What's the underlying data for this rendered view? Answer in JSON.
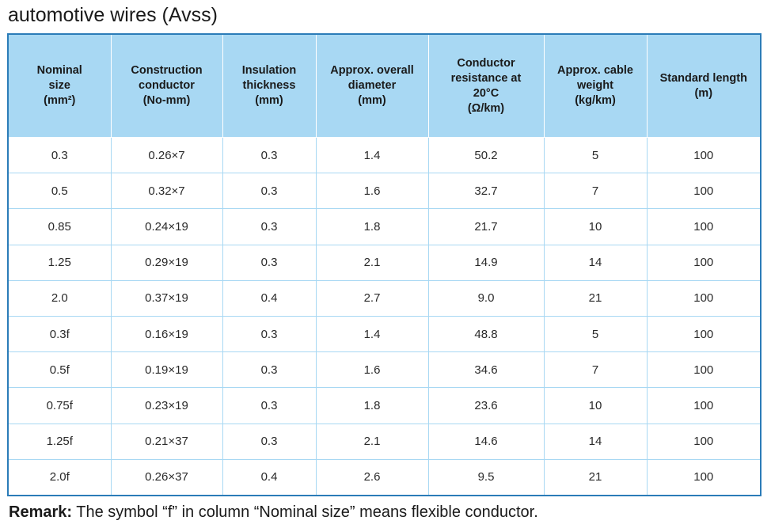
{
  "title": "automotive wires (Avss)",
  "table": {
    "headers": [
      {
        "lines": [
          "Nominal",
          "size",
          "(mm²)"
        ]
      },
      {
        "lines": [
          "Construction",
          "conductor",
          "(No-mm)"
        ]
      },
      {
        "lines": [
          "Insulation",
          "thickness",
          "(mm)"
        ]
      },
      {
        "lines": [
          "Approx. overall",
          "diameter",
          "(mm)"
        ]
      },
      {
        "lines": [
          "Conductor",
          "resistance at",
          "20°C",
          "(Ω/km)"
        ]
      },
      {
        "lines": [
          "Approx. cable",
          "weight",
          "(kg/km)"
        ]
      },
      {
        "lines": [
          "Standard length",
          "(m)"
        ]
      }
    ],
    "rows": [
      [
        "0.3",
        "0.26×7",
        "0.3",
        "1.4",
        "50.2",
        "5",
        "100"
      ],
      [
        "0.5",
        "0.32×7",
        "0.3",
        "1.6",
        "32.7",
        "7",
        "100"
      ],
      [
        "0.85",
        "0.24×19",
        "0.3",
        "1.8",
        "21.7",
        "10",
        "100"
      ],
      [
        "1.25",
        "0.29×19",
        "0.3",
        "2.1",
        "14.9",
        "14",
        "100"
      ],
      [
        "2.0",
        "0.37×19",
        "0.4",
        "2.7",
        "9.0",
        "21",
        "100"
      ],
      [
        "0.3f",
        "0.16×19",
        "0.3",
        "1.4",
        "48.8",
        "5",
        "100"
      ],
      [
        "0.5f",
        "0.19×19",
        "0.3",
        "1.6",
        "34.6",
        "7",
        "100"
      ],
      [
        "0.75f",
        "0.23×19",
        "0.3",
        "1.8",
        "23.6",
        "10",
        "100"
      ],
      [
        "1.25f",
        "0.21×37",
        "0.3",
        "2.1",
        "14.6",
        "14",
        "100"
      ],
      [
        "2.0f",
        "0.26×37",
        "0.4",
        "2.6",
        "9.5",
        "21",
        "100"
      ]
    ]
  },
  "remark": {
    "label": "Remark:",
    "text": " The symbol “f” in column “Nominal size” means flexible conductor."
  },
  "colors": {
    "header_bg": "#a8d8f3",
    "border": "#2b7cb8",
    "row_divider": "#a8d8f3"
  }
}
